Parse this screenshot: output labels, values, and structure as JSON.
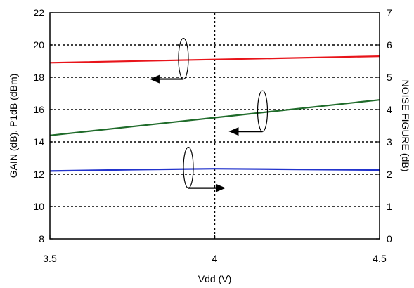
{
  "chart_data": {
    "type": "line",
    "xlabel": "Vdd (V)",
    "ylabel_left": "GAIN (dB), P1dB (dBm)",
    "ylabel_right": "NOISE FIGURE (dB)",
    "xlim": [
      3.5,
      4.5
    ],
    "ylim_left": [
      8,
      22
    ],
    "ylim_right": [
      0,
      7
    ],
    "x_ticks": [
      "3.5",
      "4",
      "4.5"
    ],
    "y_ticks_left": [
      "8",
      "10",
      "12",
      "14",
      "16",
      "18",
      "20",
      "22"
    ],
    "y_ticks_right": [
      "0",
      "1",
      "2",
      "3",
      "4",
      "5",
      "6",
      "7"
    ],
    "grid": "dotted",
    "series": [
      {
        "color": "#e8141a",
        "axis": "left",
        "x": [
          3.5,
          4.0,
          4.5
        ],
        "y": [
          18.9,
          19.1,
          19.3
        ]
      },
      {
        "color": "#1f6b2a",
        "axis": "left",
        "x": [
          3.5,
          4.0,
          4.5
        ],
        "y": [
          14.4,
          15.5,
          16.6
        ]
      },
      {
        "color": "#2233cc",
        "axis": "right",
        "x": [
          3.5,
          3.75,
          4.0,
          4.25,
          4.5
        ],
        "y": [
          2.1,
          2.14,
          2.17,
          2.15,
          2.13
        ]
      }
    ],
    "annotations": [
      {
        "series_index": 0,
        "points_to": "left"
      },
      {
        "series_index": 1,
        "points_to": "left"
      },
      {
        "series_index": 2,
        "points_to": "right"
      }
    ]
  }
}
